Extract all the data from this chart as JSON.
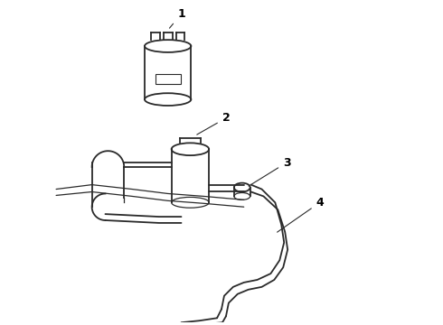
{
  "background_color": "#ffffff",
  "line_color": "#2a2a2a",
  "label_color": "#000000",
  "figure_width": 4.9,
  "figure_height": 3.6,
  "dpi": 100
}
